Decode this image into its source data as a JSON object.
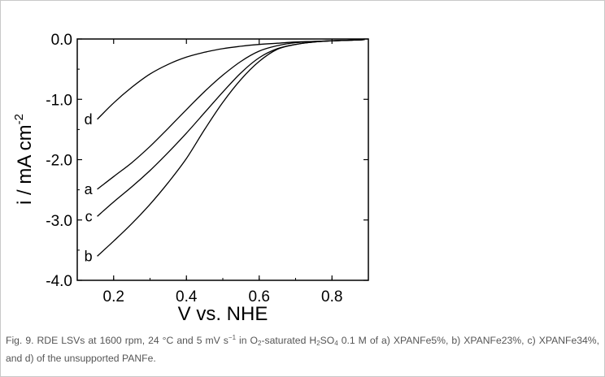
{
  "chart_data": {
    "type": "line",
    "title": "",
    "xlabel": "V vs. NHE",
    "ylabel": {
      "main": "i / mA cm",
      "exponent": "-2"
    },
    "xlim": [
      0.1,
      0.9
    ],
    "ylim": [
      -4.0,
      0.0
    ],
    "x_ticks": [
      0.2,
      0.4,
      0.6,
      0.8
    ],
    "x_tick_labels": [
      "0.2",
      "0.4",
      "0.6",
      "0.8"
    ],
    "y_ticks": [
      0.0,
      -1.0,
      -2.0,
      -3.0,
      -4.0
    ],
    "y_tick_labels": [
      "0.0",
      "-1.0",
      "-2.0",
      "-3.0",
      "-4.0"
    ],
    "grid": false,
    "series": [
      {
        "name": "d",
        "color": "#000000",
        "x": [
          0.155,
          0.2,
          0.25,
          0.3,
          0.35,
          0.4,
          0.45,
          0.5,
          0.55,
          0.6,
          0.65,
          0.7,
          0.75,
          0.8,
          0.85,
          0.89
        ],
        "y": [
          -1.33,
          -1.06,
          -0.8,
          -0.58,
          -0.42,
          -0.3,
          -0.22,
          -0.16,
          -0.12,
          -0.09,
          -0.07,
          -0.05,
          -0.04,
          -0.03,
          -0.02,
          -0.01
        ]
      },
      {
        "name": "a",
        "color": "#000000",
        "x": [
          0.155,
          0.2,
          0.25,
          0.3,
          0.35,
          0.4,
          0.45,
          0.5,
          0.55,
          0.6,
          0.65,
          0.7,
          0.75,
          0.8,
          0.85,
          0.89
        ],
        "y": [
          -2.49,
          -2.28,
          -2.05,
          -1.78,
          -1.48,
          -1.17,
          -0.87,
          -0.6,
          -0.37,
          -0.2,
          -0.11,
          -0.06,
          -0.04,
          -0.03,
          -0.02,
          -0.01
        ]
      },
      {
        "name": "c",
        "color": "#000000",
        "x": [
          0.155,
          0.2,
          0.25,
          0.3,
          0.35,
          0.4,
          0.45,
          0.5,
          0.55,
          0.6,
          0.65,
          0.7,
          0.75,
          0.8,
          0.85,
          0.89
        ],
        "y": [
          -2.94,
          -2.7,
          -2.45,
          -2.18,
          -1.88,
          -1.56,
          -1.22,
          -0.88,
          -0.56,
          -0.31,
          -0.16,
          -0.09,
          -0.05,
          -0.03,
          -0.02,
          -0.01
        ]
      },
      {
        "name": "b",
        "color": "#000000",
        "x": [
          0.155,
          0.2,
          0.25,
          0.3,
          0.35,
          0.4,
          0.45,
          0.5,
          0.55,
          0.6,
          0.65,
          0.7,
          0.75,
          0.8,
          0.85,
          0.89
        ],
        "y": [
          -3.6,
          -3.35,
          -3.06,
          -2.74,
          -2.38,
          -1.98,
          -1.5,
          -1.05,
          -0.67,
          -0.37,
          -0.17,
          -0.09,
          -0.05,
          -0.03,
          -0.02,
          -0.01
        ]
      }
    ]
  },
  "caption": {
    "p1": "Fig. 9. RDE  LSVs  at  1600 rpm,  24 °C  and  5 mV s",
    "sup1": "−1",
    "p2": "  in  O",
    "sub1": "2",
    "p3": "-saturated  H",
    "sub2": "2",
    "p4": "SO",
    "sub3": "4",
    "p5": "  0.1 M  of  a)  XPANFe5%,  b)  XPANFe23%,  c)  XPANFe34%, and d) of the unsupported PANFe."
  }
}
